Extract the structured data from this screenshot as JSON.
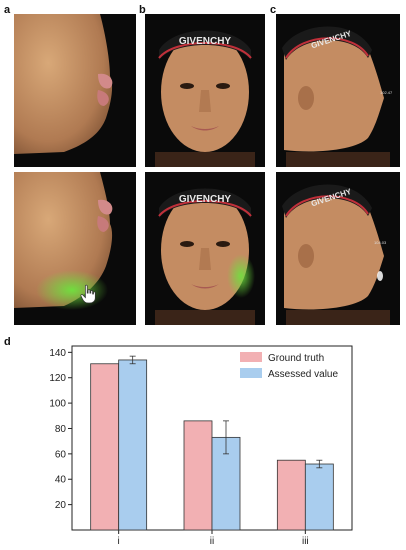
{
  "panels": {
    "a": "a",
    "b": "b",
    "c": "c",
    "d": "d"
  },
  "photos": {
    "headband_text": "GIVENCHY",
    "annotation_top": "102.47",
    "annotation_bottom": "104.03",
    "icons": [
      "hand-cursor-icon"
    ],
    "colors": {
      "background": "#0a0a0a",
      "skin": "#c99a72",
      "highlight": "#5fd43a",
      "headband": "#1a1a1a",
      "headband_stripe": "#c0303a"
    }
  },
  "chart_data": {
    "type": "bar",
    "categories": [
      "i",
      "ii",
      "iii"
    ],
    "series": [
      {
        "name": "Ground truth",
        "values": [
          131,
          86,
          55
        ],
        "errors": [
          0,
          0,
          0
        ],
        "color": "#f2b0b3"
      },
      {
        "name": "Assessed value",
        "values": [
          134,
          73,
          52
        ],
        "errors": [
          3,
          13,
          3
        ],
        "color": "#a9cdee"
      }
    ],
    "ylim": [
      0,
      145
    ],
    "yticks": [
      20,
      40,
      60,
      80,
      100,
      120,
      140
    ],
    "legend_position": "top-right",
    "grid": false
  }
}
